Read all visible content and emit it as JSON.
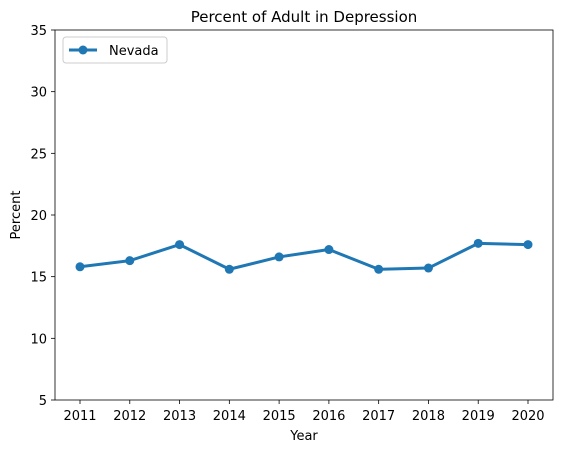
{
  "chart_data": {
    "type": "line",
    "title": "Percent of Adult in Depression",
    "xlabel": "Year",
    "ylabel": "Percent",
    "x": [
      "2011",
      "2012",
      "2013",
      "2014",
      "2015",
      "2016",
      "2017",
      "2018",
      "2019",
      "2020"
    ],
    "series": [
      {
        "name": "Nevada",
        "values": [
          15.8,
          16.3,
          17.6,
          15.6,
          16.6,
          17.2,
          15.6,
          15.7,
          17.7,
          17.6
        ],
        "color": "#1f77b4"
      }
    ],
    "ylim": [
      5,
      35
    ],
    "yticks": [
      "5",
      "10",
      "15",
      "20",
      "25",
      "30",
      "35"
    ],
    "grid": false,
    "legend_position": "top-left"
  }
}
